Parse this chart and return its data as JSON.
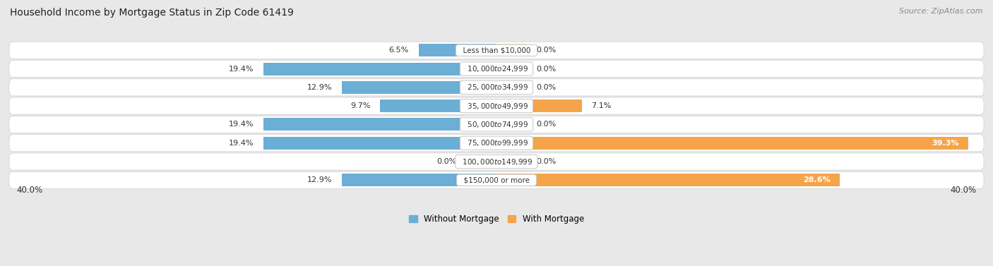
{
  "title": "Household Income by Mortgage Status in Zip Code 61419",
  "source": "Source: ZipAtlas.com",
  "categories": [
    "Less than $10,000",
    "$10,000 to $24,999",
    "$25,000 to $34,999",
    "$35,000 to $49,999",
    "$50,000 to $74,999",
    "$75,000 to $99,999",
    "$100,000 to $149,999",
    "$150,000 or more"
  ],
  "without_mortgage": [
    6.5,
    19.4,
    12.9,
    9.7,
    19.4,
    19.4,
    0.0,
    12.9
  ],
  "with_mortgage": [
    0.0,
    0.0,
    0.0,
    7.1,
    0.0,
    39.3,
    0.0,
    28.6
  ],
  "color_without": "#6baed6",
  "color_with": "#f5a44a",
  "color_without_zero": "#b8d4e8",
  "color_with_zero": "#fad9ae",
  "zero_stub": 2.5,
  "axis_limit": 40.0,
  "legend_label_without": "Without Mortgage",
  "legend_label_with": "With Mortgage",
  "background_color": "#e8e8e8",
  "row_bg_color": "#f2f2f2",
  "title_fontsize": 10,
  "source_fontsize": 8,
  "label_fontsize": 8,
  "category_fontsize": 7.5,
  "axis_label_fontsize": 8.5
}
